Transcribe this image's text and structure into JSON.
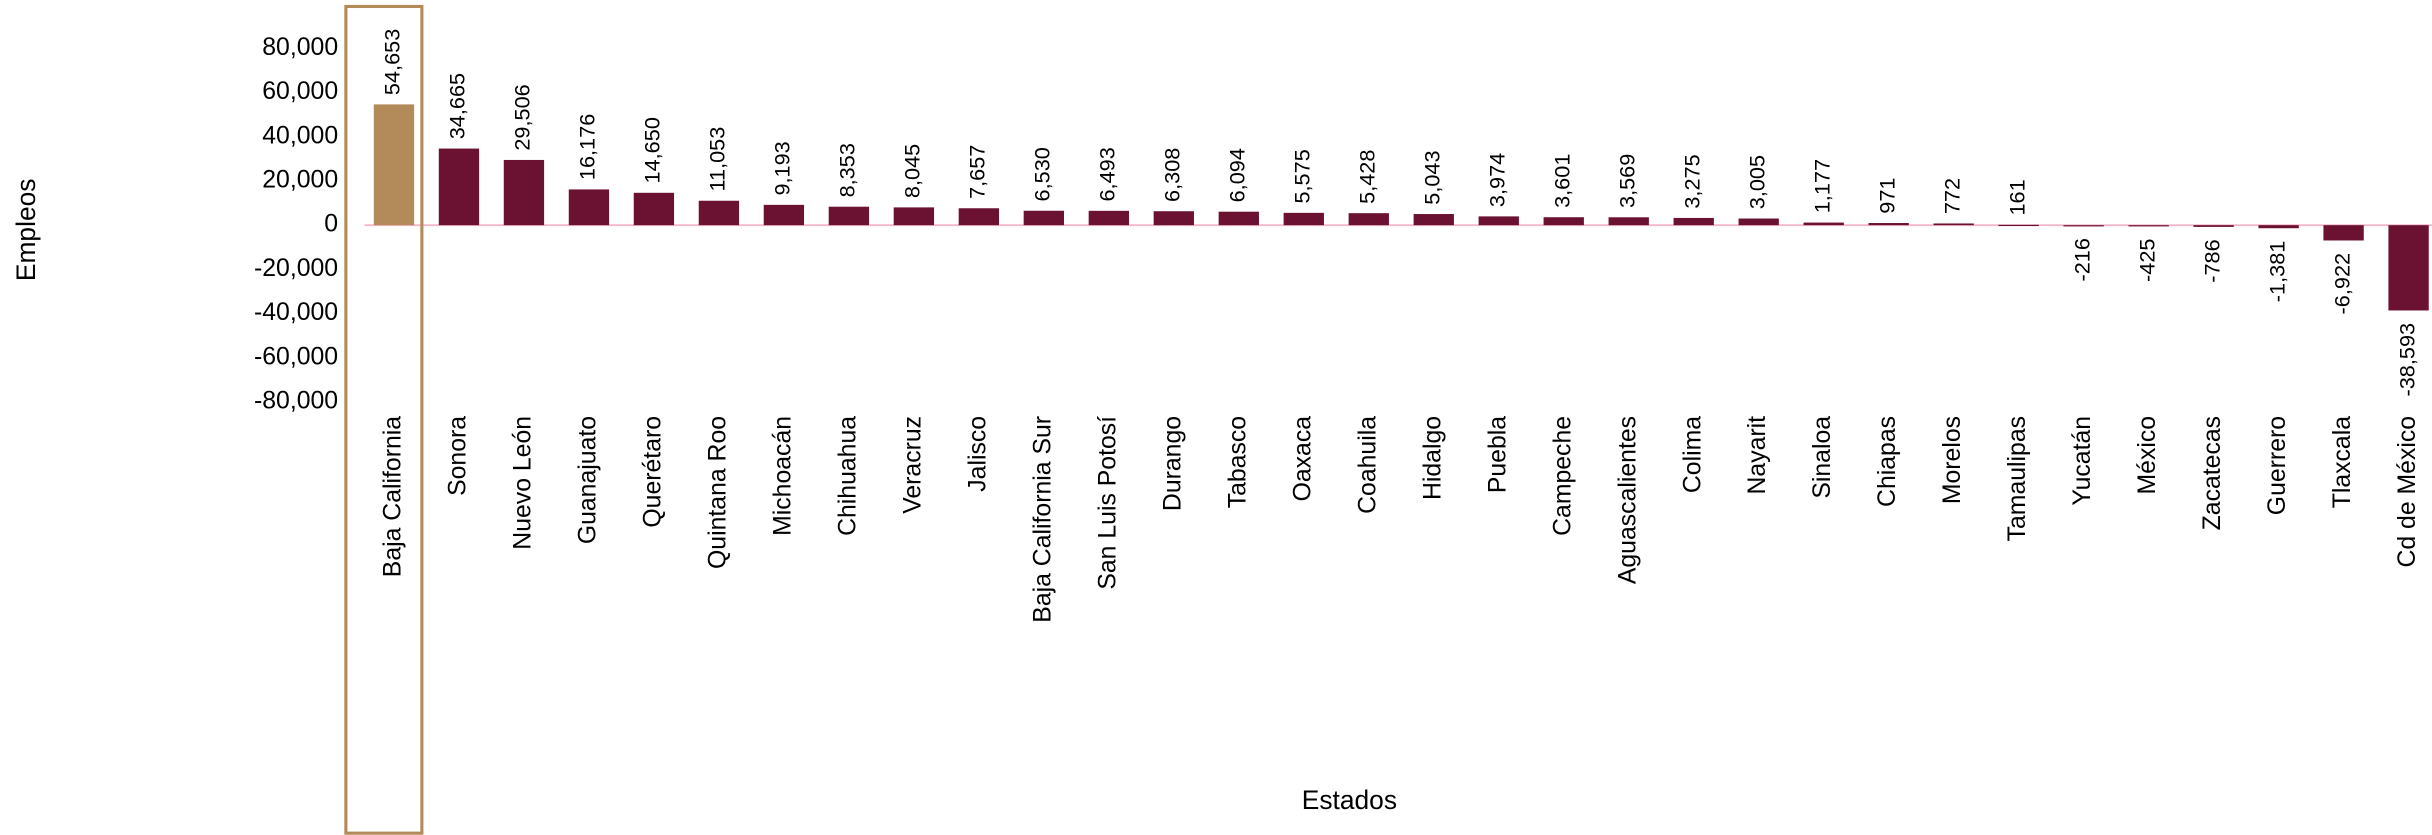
{
  "chart_data": {
    "type": "bar",
    "x_label": "Estados",
    "y_label": "Empleos",
    "categories": [
      "Baja California",
      "Sonora",
      "Nuevo León",
      "Guanajuato",
      "Querétaro",
      "Quintana Roo",
      "Michoacán",
      "Chihuahua",
      "Veracruz",
      "Jalisco",
      "Baja California Sur",
      "San Luis Potosí",
      "Durango",
      "Tabasco",
      "Oaxaca",
      "Coahuila",
      "Hidalgo",
      "Puebla",
      "Campeche",
      "Aguascalientes",
      "Colima",
      "Nayarit",
      "Sinaloa",
      "Chiapas",
      "Morelos",
      "Tamaulipas",
      "Yucatán",
      "México",
      "Zacatecas",
      "Guerrero",
      "Tlaxcala",
      "Cd de México"
    ],
    "values": [
      54653,
      34665,
      29506,
      16176,
      14650,
      11053,
      9193,
      8353,
      8045,
      7657,
      6530,
      6493,
      6308,
      6094,
      5575,
      5428,
      5043,
      3974,
      3601,
      3569,
      3275,
      3005,
      1177,
      971,
      772,
      161,
      -216,
      -425,
      -786,
      -1381,
      -6922,
      -38593
    ],
    "value_labels": [
      "54,653",
      "34,665",
      "29,506",
      "16,176",
      "14,650",
      "11,053",
      "9,193",
      "8,353",
      "8,045",
      "7,657",
      "6,530",
      "6,493",
      "6,308",
      "6,094",
      "5,575",
      "5,428",
      "5,043",
      "3,974",
      "3,601",
      "3,569",
      "3,275",
      "3,005",
      "1,177",
      "971",
      "772",
      "161",
      "-216",
      "-425",
      "-786",
      "-1,381",
      "-6,922",
      "-38,593"
    ],
    "color": "#6b1232",
    "highlight": {
      "index": 0,
      "color": "#b38b5a"
    },
    "zero_line_color": "#f4b8c8",
    "ylim": [
      -80000,
      80000
    ],
    "yticks": [
      {
        "value": -80000,
        "label": "-80,000"
      },
      {
        "value": -60000,
        "label": "-60,000"
      },
      {
        "value": -40000,
        "label": "-40,000"
      },
      {
        "value": -20000,
        "label": "-20,000"
      },
      0,
      {
        "value": 20000,
        "label": "20,000"
      },
      {
        "value": 40000,
        "label": "40,000"
      },
      {
        "value": 60000,
        "label": "60,000"
      },
      {
        "value": 80000,
        "label": "80,000"
      }
    ],
    "grid": false
  }
}
